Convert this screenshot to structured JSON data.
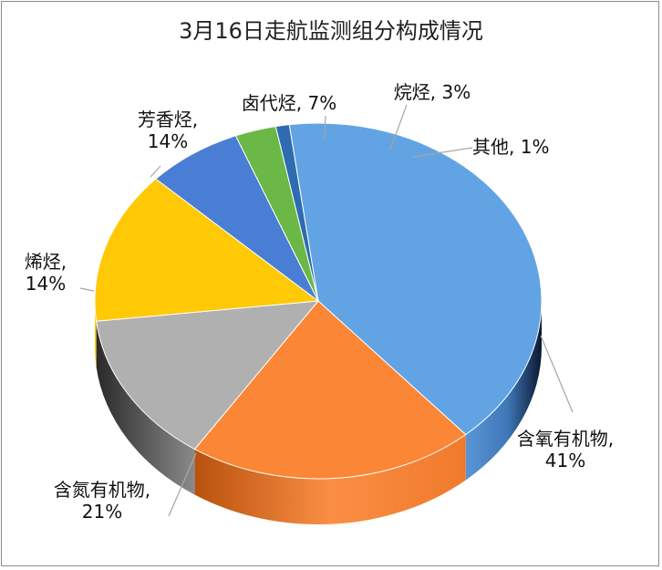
{
  "chart_data": {
    "type": "pie",
    "title": "3月16日走航监测组分构成情况",
    "slices": [
      {
        "name": "其他",
        "value": 1,
        "label_lines": [
          "其他, 1%"
        ],
        "color": "#2e6bb0"
      },
      {
        "name": "含氧有机物",
        "value": 41,
        "label_lines": [
          "含氧有机物,",
          "41%"
        ],
        "color": "#62a3e3"
      },
      {
        "name": "含氮有机物",
        "value": 21,
        "label_lines": [
          "含氮有机物,",
          "21%"
        ],
        "color": "#fb8636"
      },
      {
        "name": "烯烃",
        "value": 14,
        "label_lines": [
          "烯烃,",
          "14%"
        ],
        "color": "#b0b0b0"
      },
      {
        "name": "芳香烃",
        "value": 14,
        "label_lines": [
          "芳香烃,",
          "14%"
        ],
        "color": "#ffc906"
      },
      {
        "name": "卤代烃",
        "value": 7,
        "label_lines": [
          "卤代烃, 7%"
        ],
        "color": "#4a7ed4"
      },
      {
        "name": "烷烃",
        "value": 3,
        "label_lines": [
          "烷烃, 3%"
        ],
        "color": "#6cb846"
      }
    ]
  }
}
